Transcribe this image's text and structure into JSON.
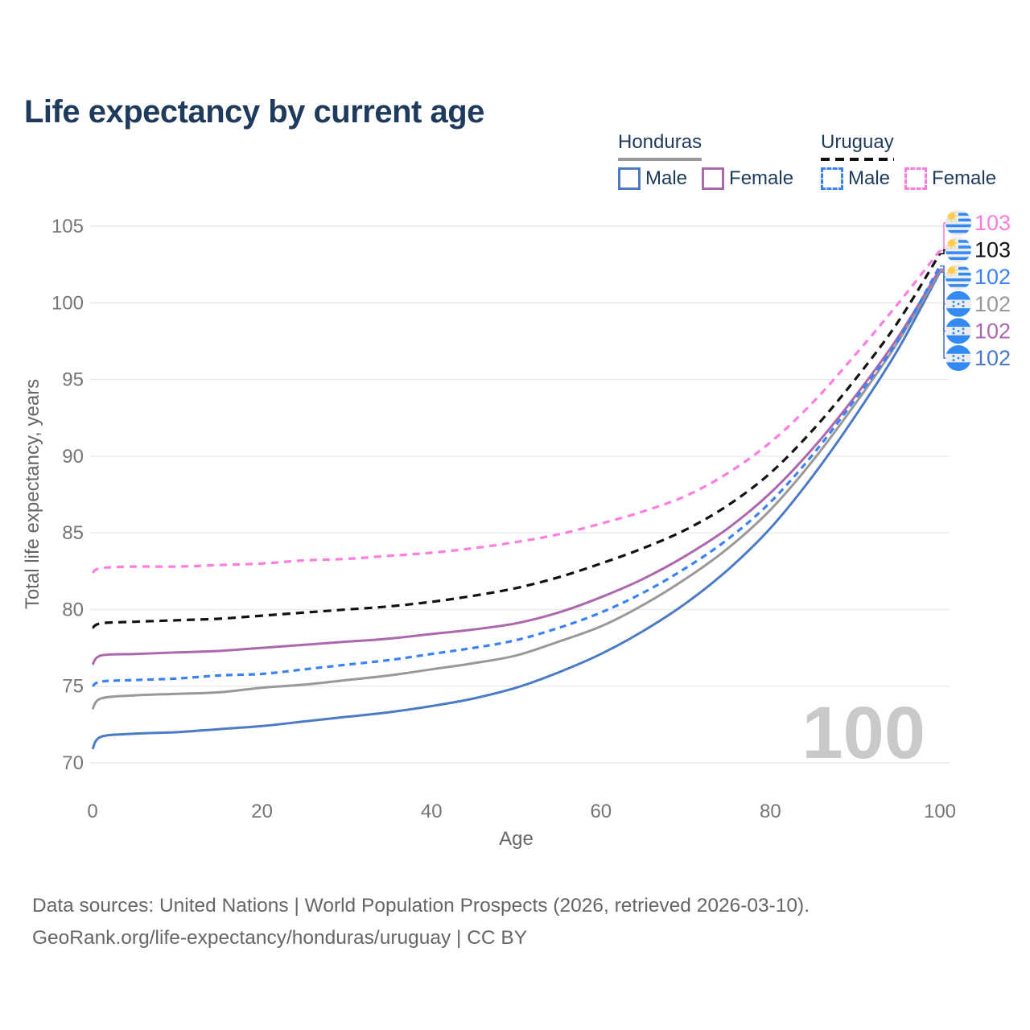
{
  "title": "Life expectancy by current age",
  "legend": {
    "groups": [
      {
        "label": "Honduras",
        "line_style": "solid",
        "line_color": "#999999",
        "items": [
          {
            "label": "Male",
            "color": "#4a7bc4",
            "style": "solid"
          },
          {
            "label": "Female",
            "color": "#ad68ad",
            "style": "solid"
          }
        ]
      },
      {
        "label": "Uruguay",
        "line_style": "dashed",
        "line_color": "#111111",
        "items": [
          {
            "label": "Male",
            "color": "#3b82f6",
            "style": "dashed"
          },
          {
            "label": "Female",
            "color": "#ff7de1",
            "style": "dashed"
          }
        ]
      }
    ]
  },
  "watermark": "100",
  "footer": {
    "line1": "Data sources: United Nations | World Population Prospects (2026, retrieved 2026-03-10).",
    "line2": "GeoRank.org/life-expectancy/honduras/uruguay | CC BY"
  },
  "chart_data": {
    "type": "line",
    "title": "Life expectancy by current age",
    "xlabel": "Age",
    "ylabel": "Total life expectancy, years",
    "xlim": [
      0,
      100
    ],
    "ylim": [
      70,
      105
    ],
    "x_ticks": [
      0,
      20,
      40,
      60,
      80,
      100
    ],
    "y_ticks": [
      70,
      75,
      80,
      85,
      90,
      95,
      100,
      105
    ],
    "grid": "horizontal-only",
    "legend_position": "top-right",
    "ages": [
      0,
      1,
      5,
      10,
      15,
      20,
      25,
      30,
      35,
      40,
      45,
      50,
      55,
      60,
      65,
      70,
      75,
      80,
      85,
      90,
      95,
      100
    ],
    "series": [
      {
        "id": "honduras-male",
        "name": "Honduras Male",
        "country": "Honduras",
        "sex": "male",
        "color": "#4a7bc4",
        "dash": "solid",
        "dash_array": "",
        "flag": "honduras",
        "label_row": 5,
        "end_label": "102",
        "values": [
          70.9,
          71.7,
          71.9,
          72.0,
          72.2,
          72.4,
          72.7,
          73.0,
          73.3,
          73.7,
          74.2,
          74.9,
          75.9,
          77.1,
          78.6,
          80.4,
          82.6,
          85.3,
          88.7,
          92.6,
          96.9,
          102.0
        ]
      },
      {
        "id": "honduras-all",
        "name": "Honduras",
        "country": "Honduras",
        "sex": "all",
        "color": "#999999",
        "dash": "solid",
        "dash_array": "",
        "flag": "honduras",
        "label_row": 3,
        "end_label": "102",
        "values": [
          73.5,
          74.2,
          74.4,
          74.5,
          74.6,
          74.9,
          75.1,
          75.4,
          75.7,
          76.1,
          76.5,
          77.0,
          77.9,
          78.9,
          80.3,
          82.0,
          84.0,
          86.5,
          89.7,
          93.4,
          97.4,
          102.1
        ]
      },
      {
        "id": "honduras-female",
        "name": "Honduras Female",
        "country": "Honduras",
        "sex": "female",
        "color": "#ad68ad",
        "dash": "solid",
        "dash_array": "",
        "flag": "honduras",
        "label_row": 4,
        "end_label": "102",
        "values": [
          76.4,
          77.0,
          77.1,
          77.2,
          77.3,
          77.5,
          77.7,
          77.9,
          78.1,
          78.4,
          78.7,
          79.1,
          79.8,
          80.8,
          82.0,
          83.5,
          85.3,
          87.6,
          90.5,
          93.9,
          97.7,
          102.2
        ]
      },
      {
        "id": "uruguay-male",
        "name": "Uruguay Male",
        "country": "Uruguay",
        "sex": "male",
        "color": "#3b82f6",
        "dash": "dashed",
        "dash_array": "8 6",
        "flag": "uruguay",
        "label_row": 2,
        "end_label": "102",
        "values": [
          75.0,
          75.3,
          75.4,
          75.5,
          75.7,
          75.8,
          76.1,
          76.4,
          76.7,
          77.1,
          77.5,
          78.0,
          78.8,
          79.8,
          81.1,
          82.7,
          84.6,
          87.0,
          90.1,
          93.7,
          97.5,
          102.4
        ]
      },
      {
        "id": "uruguay-all",
        "name": "Uruguay",
        "country": "Uruguay",
        "sex": "all",
        "color": "#111111",
        "dash": "dashed",
        "dash_array": "10 7",
        "flag": "uruguay",
        "label_row": 1,
        "end_label": "103",
        "values": [
          78.8,
          79.1,
          79.2,
          79.3,
          79.4,
          79.6,
          79.8,
          80.0,
          80.2,
          80.5,
          80.9,
          81.4,
          82.1,
          83.0,
          84.0,
          85.2,
          86.8,
          88.9,
          91.7,
          95.0,
          98.7,
          103.2
        ]
      },
      {
        "id": "uruguay-female",
        "name": "Uruguay Female",
        "country": "Uruguay",
        "sex": "female",
        "color": "#ff7de1",
        "dash": "dashed",
        "dash_array": "9 7",
        "flag": "uruguay",
        "label_row": 0,
        "end_label": "103",
        "values": [
          82.4,
          82.7,
          82.8,
          82.8,
          82.9,
          83.0,
          83.2,
          83.3,
          83.5,
          83.7,
          84.0,
          84.4,
          84.9,
          85.6,
          86.4,
          87.4,
          88.9,
          90.9,
          93.5,
          96.6,
          99.9,
          103.4
        ]
      }
    ],
    "flag_colors": {
      "blue": "#338af3",
      "sun": "#ffcc4d",
      "bg": "#ededed"
    }
  }
}
